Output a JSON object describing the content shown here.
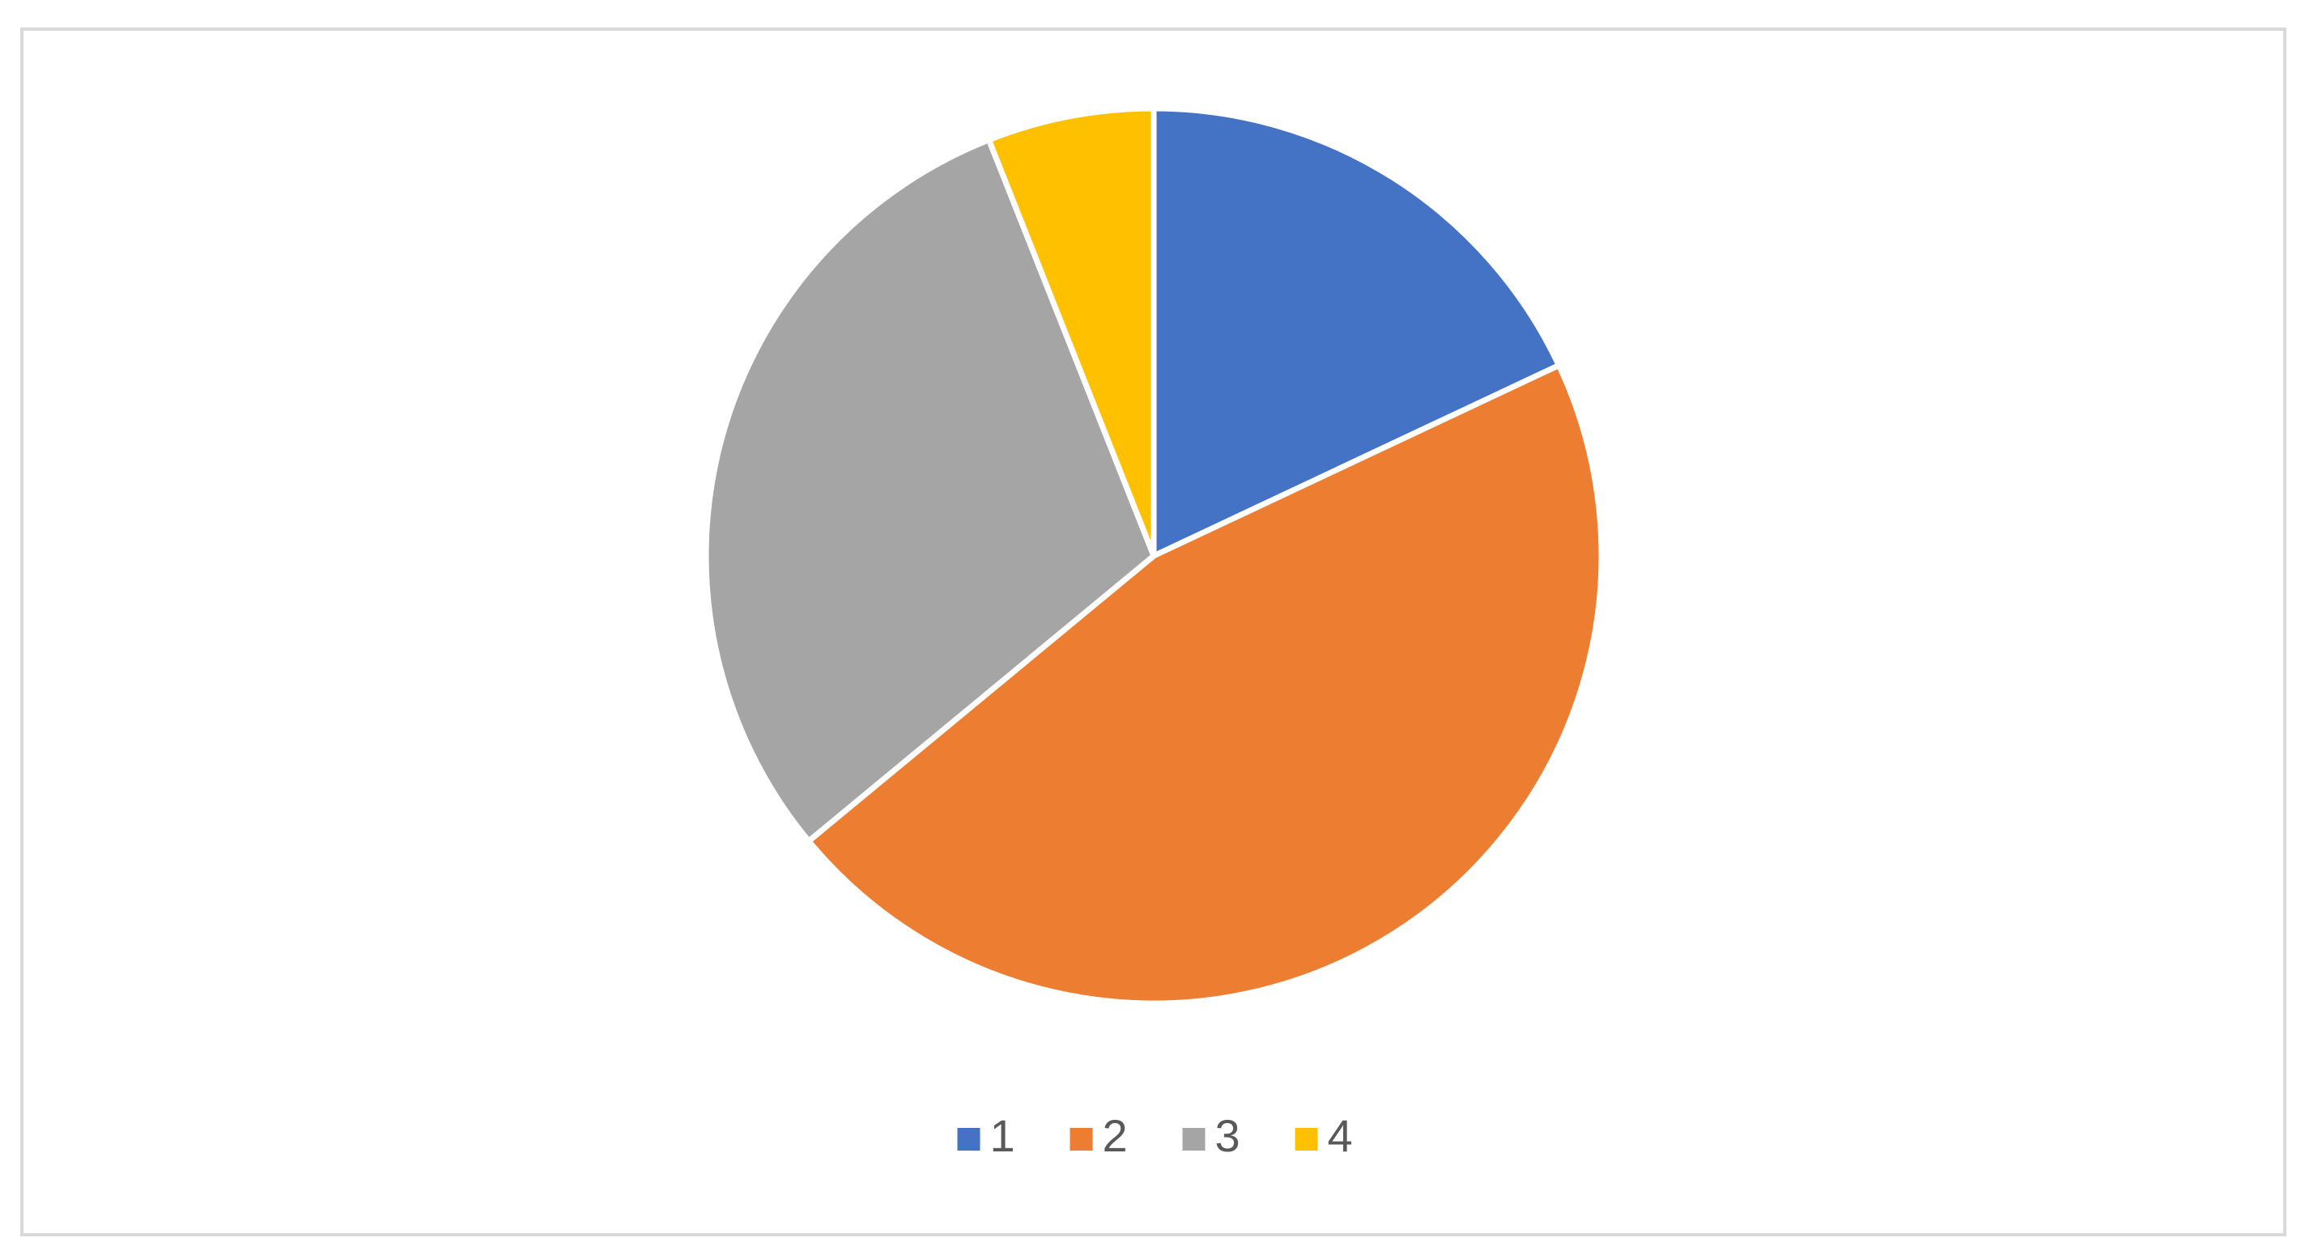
{
  "chart_data": {
    "type": "pie",
    "categories": [
      "1",
      "2",
      "3",
      "4"
    ],
    "values": [
      18,
      46,
      30,
      6
    ],
    "colors": [
      "#4472c4",
      "#ed7d31",
      "#a5a5a5",
      "#ffc000"
    ],
    "legend": "bottom"
  }
}
